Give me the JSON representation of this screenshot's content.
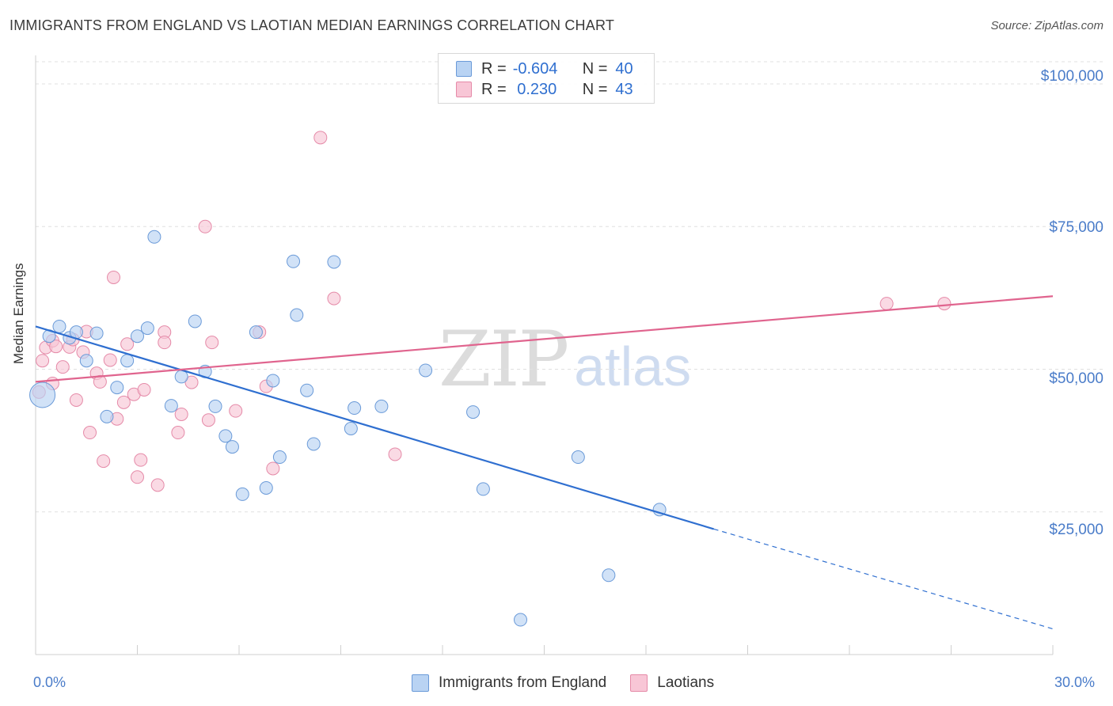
{
  "header": {
    "title": "IMMIGRANTS FROM ENGLAND VS LAOTIAN MEDIAN EARNINGS CORRELATION CHART",
    "source": "Source: ZipAtlas.com"
  },
  "legend": {
    "rows": [
      {
        "r_label": "R =",
        "r_value": "-0.604",
        "n_label": "N =",
        "n_value": "40"
      },
      {
        "r_label": "R =",
        "r_value": " 0.230",
        "n_label": "N =",
        "n_value": "43"
      }
    ]
  },
  "watermark": {
    "zip": "ZIP",
    "atlas": "atlas"
  },
  "colors": {
    "blue_fill": "#b9d3f3",
    "blue_stroke": "#6a9ad8",
    "blue_line": "#2f6fd0",
    "pink_fill": "#f8c6d6",
    "pink_stroke": "#e58aa8",
    "pink_line": "#e0648e",
    "grid": "#e0e0e0",
    "tick_text": "#4a7cc9"
  },
  "chart_data": {
    "type": "scatter",
    "title": "IMMIGRANTS FROM ENGLAND VS LAOTIAN MEDIAN EARNINGS CORRELATION CHART",
    "xlabel": "",
    "ylabel": "Median Earnings",
    "xlim": [
      0,
      30
    ],
    "ylim": [
      0,
      105000
    ],
    "x_tick_labels": [
      "0.0%",
      "30.0%"
    ],
    "y_ticks": [
      25000,
      50000,
      75000,
      100000
    ],
    "y_tick_labels": [
      "$25,000",
      "$50,000",
      "$75,000",
      "$100,000"
    ],
    "grid": true,
    "legend_position": "bottom",
    "series": [
      {
        "name": "Immigrants from England",
        "color": "#6a9ad8",
        "r": -0.604,
        "n": 40,
        "trend": {
          "x0": 0.0,
          "y0": 57500,
          "x1": 20.0,
          "y1": 22000,
          "dash_to_x": 30.0,
          "dash_to_y": 4500
        },
        "points": [
          [
            0.2,
            45500
          ],
          [
            0.4,
            55800
          ],
          [
            0.7,
            57500
          ],
          [
            1.0,
            55500
          ],
          [
            1.2,
            56500
          ],
          [
            1.5,
            51500
          ],
          [
            1.8,
            56300
          ],
          [
            2.1,
            41700
          ],
          [
            2.4,
            46800
          ],
          [
            2.7,
            51500
          ],
          [
            3.0,
            55800
          ],
          [
            3.3,
            57200
          ],
          [
            3.5,
            73200
          ],
          [
            4.0,
            43600
          ],
          [
            4.3,
            48700
          ],
          [
            4.7,
            58400
          ],
          [
            5.0,
            49600
          ],
          [
            5.3,
            43500
          ],
          [
            5.6,
            38300
          ],
          [
            5.8,
            36400
          ],
          [
            6.1,
            28100
          ],
          [
            6.5,
            56500
          ],
          [
            6.8,
            29200
          ],
          [
            7.0,
            48000
          ],
          [
            7.2,
            34600
          ],
          [
            7.6,
            68900
          ],
          [
            7.7,
            59500
          ],
          [
            8.0,
            46300
          ],
          [
            8.2,
            36900
          ],
          [
            8.8,
            68800
          ],
          [
            9.3,
            39600
          ],
          [
            9.4,
            43200
          ],
          [
            10.2,
            43500
          ],
          [
            11.5,
            49800
          ],
          [
            12.9,
            42500
          ],
          [
            13.2,
            29000
          ],
          [
            14.3,
            6100
          ],
          [
            16.0,
            34600
          ],
          [
            16.9,
            13900
          ],
          [
            18.4,
            25400
          ]
        ]
      },
      {
        "name": "Laotians",
        "color": "#e58aa8",
        "r": 0.23,
        "n": 43,
        "trend": {
          "x0": 0.0,
          "y0": 47800,
          "x1": 30.0,
          "y1": 62800
        },
        "points": [
          [
            0.1,
            46000
          ],
          [
            0.2,
            51500
          ],
          [
            0.3,
            53800
          ],
          [
            0.5,
            55000
          ],
          [
            0.6,
            54000
          ],
          [
            0.8,
            50400
          ],
          [
            1.0,
            53900
          ],
          [
            1.1,
            55200
          ],
          [
            1.2,
            44600
          ],
          [
            1.4,
            53000
          ],
          [
            1.5,
            56600
          ],
          [
            1.6,
            38900
          ],
          [
            1.8,
            49300
          ],
          [
            1.9,
            47800
          ],
          [
            2.0,
            33900
          ],
          [
            2.2,
            51600
          ],
          [
            2.3,
            66100
          ],
          [
            2.4,
            41300
          ],
          [
            2.6,
            44200
          ],
          [
            2.7,
            54400
          ],
          [
            2.9,
            45600
          ],
          [
            3.0,
            31100
          ],
          [
            3.1,
            34100
          ],
          [
            3.2,
            46400
          ],
          [
            3.6,
            29700
          ],
          [
            3.8,
            56500
          ],
          [
            3.8,
            54700
          ],
          [
            4.2,
            38900
          ],
          [
            4.3,
            42100
          ],
          [
            4.6,
            47700
          ],
          [
            5.0,
            75000
          ],
          [
            5.1,
            41100
          ],
          [
            5.2,
            54700
          ],
          [
            5.9,
            42700
          ],
          [
            6.6,
            56500
          ],
          [
            6.8,
            47000
          ],
          [
            7.0,
            32600
          ],
          [
            8.4,
            90600
          ],
          [
            8.8,
            62400
          ],
          [
            10.6,
            35100
          ],
          [
            25.1,
            61500
          ],
          [
            26.8,
            61500
          ],
          [
            0.5,
            47500
          ]
        ]
      }
    ]
  }
}
